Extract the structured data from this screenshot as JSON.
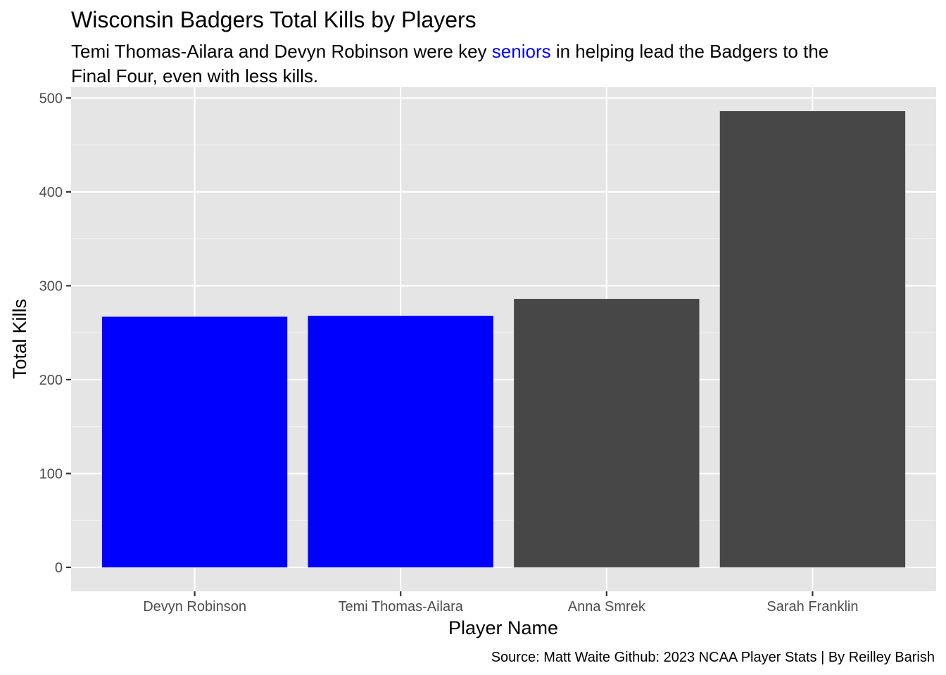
{
  "chart_data": {
    "type": "bar",
    "title": "Wisconsin Badgers Total Kills by Players",
    "subtitle": {
      "line1_before": "Temi Thomas-Ailara and Devyn Robinson were key ",
      "line1_highlight": "seniors",
      "line1_after": " in helping lead the Badgers to the",
      "line2": "Final Four, even with less kills."
    },
    "xlabel": "Player Name",
    "ylabel": "Total Kills",
    "caption": "Source: Matt Waite Github: 2023 NCAA Player Stats | By Reilley Barish",
    "categories": [
      "Devyn Robinson",
      "Temi Thomas-Ailara",
      "Anna Smrek",
      "Sarah Franklin"
    ],
    "values": [
      267,
      268,
      286,
      486
    ],
    "bar_colors": [
      "#0000FF",
      "#0000FF",
      "#474747",
      "#474747"
    ],
    "ylim": [
      -25.5,
      511.5
    ],
    "yticks": [
      0,
      100,
      200,
      300,
      400,
      500
    ],
    "grid": true,
    "legend": "none",
    "highlight_color": "#0000FF",
    "panel_background": "#E5E5E5"
  }
}
